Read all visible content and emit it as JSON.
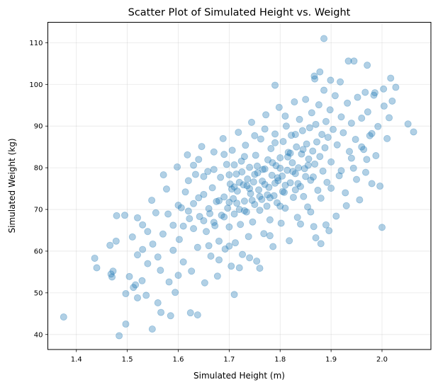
{
  "chart_data": {
    "type": "scatter",
    "title": "Scatter Plot of Simulated Height vs. Weight",
    "xlabel": "Simulated Height (m)",
    "ylabel": "Simulated Weight (kg)",
    "xlim": [
      1.344,
      2.096
    ],
    "ylim": [
      36.4,
      114.9
    ],
    "xticks": [
      1.4,
      1.5,
      1.6,
      1.7,
      1.8,
      1.9,
      2.0
    ],
    "xtick_labels": [
      "1.4",
      "1.5",
      "1.6",
      "1.7",
      "1.8",
      "1.9",
      "2.0"
    ],
    "yticks": [
      40,
      50,
      60,
      70,
      80,
      90,
      100,
      110
    ],
    "ytick_labels": [
      "40",
      "50",
      "60",
      "70",
      "80",
      "90",
      "100",
      "110"
    ],
    "grid": true,
    "marker_color": "#1f77b4",
    "marker_alpha": 0.35,
    "points": [
      [
        1.375,
        44.2
      ],
      [
        1.484,
        39.7
      ],
      [
        1.497,
        42.5
      ],
      [
        1.549,
        41.3
      ],
      [
        1.886,
        111.0
      ],
      [
        2.062,
        88.6
      ],
      [
        2.051,
        90.5
      ],
      [
        2.0,
        65.7
      ],
      [
        1.934,
        105.6
      ],
      [
        1.945,
        105.6
      ],
      [
        1.971,
        104.6
      ],
      [
        1.878,
        103.0
      ],
      [
        2.017,
        101.5
      ],
      [
        2.027,
        99.3
      ],
      [
        1.867,
        102.0
      ],
      [
        1.868,
        101.3
      ],
      [
        1.79,
        99.8
      ],
      [
        1.918,
        100.6
      ],
      [
        1.899,
        101.0
      ],
      [
        1.967,
        98.1
      ],
      [
        1.986,
        98.0
      ],
      [
        2.003,
        98.9
      ],
      [
        1.436,
        58.3
      ],
      [
        1.44,
        56.0
      ],
      [
        1.466,
        61.4
      ],
      [
        1.468,
        54.5
      ],
      [
        1.472,
        55.2
      ],
      [
        1.47,
        53.8
      ],
      [
        1.478,
        62.4
      ],
      [
        1.479,
        68.5
      ],
      [
        1.495,
        68.6
      ],
      [
        1.497,
        49.8
      ],
      [
        1.504,
        53.9
      ],
      [
        1.512,
        51.3
      ],
      [
        1.516,
        51.9
      ],
      [
        1.52,
        48.8
      ],
      [
        1.529,
        52.9
      ],
      [
        1.537,
        49.4
      ],
      [
        1.56,
        47.6
      ],
      [
        1.566,
        45.3
      ],
      [
        1.585,
        44.5
      ],
      [
        1.624,
        45.2
      ],
      [
        1.638,
        44.7
      ],
      [
        1.71,
        49.6
      ],
      [
        1.51,
        63.4
      ],
      [
        1.52,
        68.0
      ],
      [
        1.53,
        60.4
      ],
      [
        1.54,
        64.7
      ],
      [
        1.548,
        72.2
      ],
      [
        1.556,
        69.2
      ],
      [
        1.56,
        58.6
      ],
      [
        1.565,
        55.4
      ],
      [
        1.571,
        78.3
      ],
      [
        1.577,
        74.9
      ],
      [
        1.582,
        52.6
      ],
      [
        1.59,
        66.2
      ],
      [
        1.594,
        50.1
      ],
      [
        1.598,
        80.2
      ],
      [
        1.602,
        62.8
      ],
      [
        1.606,
        70.4
      ],
      [
        1.61,
        57.4
      ],
      [
        1.614,
        74.2
      ],
      [
        1.618,
        83.1
      ],
      [
        1.622,
        67.8
      ],
      [
        1.626,
        55.2
      ],
      [
        1.63,
        71.4
      ],
      [
        1.634,
        78.4
      ],
      [
        1.638,
        60.9
      ],
      [
        1.642,
        68.3
      ],
      [
        1.646,
        85.1
      ],
      [
        1.65,
        73.6
      ],
      [
        1.652,
        52.4
      ],
      [
        1.655,
        64.7
      ],
      [
        1.658,
        79.1
      ],
      [
        1.662,
        69.0
      ],
      [
        1.664,
        58.8
      ],
      [
        1.667,
        75.2
      ],
      [
        1.67,
        83.8
      ],
      [
        1.672,
        66.1
      ],
      [
        1.675,
        71.9
      ],
      [
        1.677,
        54.0
      ],
      [
        1.68,
        62.4
      ],
      [
        1.683,
        77.7
      ],
      [
        1.685,
        68.6
      ],
      [
        1.688,
        87.0
      ],
      [
        1.69,
        73.0
      ],
      [
        1.692,
        60.5
      ],
      [
        1.695,
        80.8
      ],
      [
        1.697,
        70.3
      ],
      [
        1.7,
        65.8
      ],
      [
        1.702,
        76.1
      ],
      [
        1.704,
        56.4
      ],
      [
        1.706,
        84.2
      ],
      [
        1.708,
        72.6
      ],
      [
        1.71,
        68.9
      ],
      [
        1.712,
        62.0
      ],
      [
        1.714,
        78.5
      ],
      [
        1.716,
        74.4
      ],
      [
        1.718,
        88.5
      ],
      [
        1.72,
        70.0
      ],
      [
        1.722,
        66.4
      ],
      [
        1.724,
        81.6
      ],
      [
        1.726,
        59.2
      ],
      [
        1.728,
        75.9
      ],
      [
        1.73,
        72.0
      ],
      [
        1.732,
        85.4
      ],
      [
        1.734,
        69.4
      ],
      [
        1.736,
        77.3
      ],
      [
        1.738,
        63.5
      ],
      [
        1.74,
        80.1
      ],
      [
        1.742,
        73.8
      ],
      [
        1.744,
        90.9
      ],
      [
        1.746,
        67.0
      ],
      [
        1.748,
        76.6
      ],
      [
        1.75,
        71.2
      ],
      [
        1.752,
        83.0
      ],
      [
        1.754,
        57.6
      ],
      [
        1.756,
        78.8
      ],
      [
        1.758,
        74.7
      ],
      [
        1.76,
        69.8
      ],
      [
        1.762,
        86.9
      ],
      [
        1.764,
        72.4
      ],
      [
        1.766,
        79.6
      ],
      [
        1.768,
        64.2
      ],
      [
        1.77,
        76.0
      ],
      [
        1.772,
        92.7
      ],
      [
        1.774,
        70.8
      ],
      [
        1.776,
        81.9
      ],
      [
        1.778,
        75.3
      ],
      [
        1.78,
        67.5
      ],
      [
        1.782,
        84.6
      ],
      [
        1.784,
        78.2
      ],
      [
        1.786,
        61.1
      ],
      [
        1.788,
        73.3
      ],
      [
        1.79,
        88.1
      ],
      [
        1.792,
        80.5
      ],
      [
        1.794,
        71.6
      ],
      [
        1.796,
        76.9
      ],
      [
        1.798,
        94.5
      ],
      [
        1.8,
        82.4
      ],
      [
        1.802,
        66.7
      ],
      [
        1.804,
        78.0
      ],
      [
        1.806,
        86.3
      ],
      [
        1.808,
        74.1
      ],
      [
        1.81,
        70.3
      ],
      [
        1.812,
        90.0
      ],
      [
        1.814,
        79.4
      ],
      [
        1.816,
        83.7
      ],
      [
        1.818,
        62.5
      ],
      [
        1.82,
        76.4
      ],
      [
        1.822,
        87.8
      ],
      [
        1.824,
        81.2
      ],
      [
        1.826,
        72.9
      ],
      [
        1.828,
        95.8
      ],
      [
        1.83,
        78.6
      ],
      [
        1.832,
        85.0
      ],
      [
        1.834,
        68.1
      ],
      [
        1.836,
        80.0
      ],
      [
        1.838,
        91.6
      ],
      [
        1.84,
        75.5
      ],
      [
        1.842,
        83.3
      ],
      [
        1.844,
        88.9
      ],
      [
        1.846,
        73.1
      ],
      [
        1.848,
        79.8
      ],
      [
        1.85,
        96.4
      ],
      [
        1.852,
        85.7
      ],
      [
        1.854,
        70.6
      ],
      [
        1.856,
        82.1
      ],
      [
        1.858,
        89.6
      ],
      [
        1.86,
        77.0
      ],
      [
        1.862,
        93.2
      ],
      [
        1.864,
        84.0
      ],
      [
        1.866,
        65.9
      ],
      [
        1.868,
        80.9
      ],
      [
        1.87,
        90.4
      ],
      [
        1.872,
        86.2
      ],
      [
        1.874,
        74.6
      ],
      [
        1.876,
        95.1
      ],
      [
        1.878,
        82.7
      ],
      [
        1.88,
        61.8
      ],
      [
        1.882,
        88.0
      ],
      [
        1.884,
        79.2
      ],
      [
        1.886,
        98.6
      ],
      [
        1.888,
        84.8
      ],
      [
        1.89,
        91.1
      ],
      [
        1.892,
        76.5
      ],
      [
        1.894,
        87.3
      ],
      [
        1.896,
        64.9
      ],
      [
        1.898,
        93.9
      ],
      [
        1.9,
        81.4
      ],
      [
        1.904,
        89.2
      ],
      [
        1.908,
        97.3
      ],
      [
        1.912,
        85.5
      ],
      [
        1.916,
        78.1
      ],
      [
        1.92,
        92.2
      ],
      [
        1.924,
        88.4
      ],
      [
        1.928,
        74.0
      ],
      [
        1.932,
        95.5
      ],
      [
        1.936,
        83.9
      ],
      [
        1.94,
        90.7
      ],
      [
        1.944,
        79.9
      ],
      [
        1.948,
        86.8
      ],
      [
        1.952,
        96.9
      ],
      [
        1.956,
        72.3
      ],
      [
        1.96,
        91.9
      ],
      [
        1.964,
        84.4
      ],
      [
        1.968,
        78.9
      ],
      [
        1.972,
        93.4
      ],
      [
        1.976,
        87.7
      ],
      [
        1.98,
        76.2
      ],
      [
        1.984,
        97.4
      ],
      [
        1.988,
        82.9
      ],
      [
        1.992,
        89.9
      ],
      [
        1.996,
        75.6
      ],
      [
        2.004,
        94.8
      ],
      [
        2.01,
        87.0
      ],
      [
        2.014,
        92.0
      ],
      [
        2.02,
        96.0
      ],
      [
        1.7,
        78.3
      ],
      [
        1.705,
        74.9
      ],
      [
        1.715,
        71.5
      ],
      [
        1.725,
        79.0
      ],
      [
        1.735,
        75.7
      ],
      [
        1.745,
        72.2
      ],
      [
        1.755,
        80.4
      ],
      [
        1.765,
        76.8
      ],
      [
        1.775,
        73.5
      ],
      [
        1.785,
        81.2
      ],
      [
        1.795,
        77.6
      ],
      [
        1.805,
        74.3
      ],
      [
        1.815,
        82.6
      ],
      [
        1.825,
        79.1
      ],
      [
        1.835,
        76.2
      ],
      [
        1.845,
        84.4
      ],
      [
        1.855,
        80.6
      ],
      [
        1.865,
        77.8
      ],
      [
        1.72,
        76.5
      ],
      [
        1.73,
        69.7
      ],
      [
        1.74,
        75.0
      ],
      [
        1.75,
        78.4
      ],
      [
        1.76,
        73.1
      ],
      [
        1.77,
        79.7
      ],
      [
        1.78,
        72.8
      ],
      [
        1.79,
        76.3
      ],
      [
        1.8,
        79.9
      ],
      [
        1.81,
        75.8
      ],
      [
        1.82,
        83.5
      ],
      [
        1.83,
        74.7
      ],
      [
        1.66,
        70.2
      ],
      [
        1.67,
        66.9
      ],
      [
        1.68,
        72.1
      ],
      [
        1.69,
        68.2
      ],
      [
        1.7,
        71.7
      ],
      [
        1.71,
        75.4
      ],
      [
        1.64,
        72.8
      ],
      [
        1.65,
        67.3
      ],
      [
        1.62,
        69.6
      ],
      [
        1.63,
        65.4
      ],
      [
        1.6,
        71.0
      ],
      [
        1.61,
        66.0
      ],
      [
        1.58,
        68.9
      ],
      [
        1.59,
        60.2
      ],
      [
        1.57,
        64.1
      ],
      [
        1.55,
        61.7
      ],
      [
        1.54,
        57.0
      ],
      [
        1.53,
        66.3
      ],
      [
        1.52,
        59.1
      ],
      [
        1.6,
        54.2
      ],
      [
        1.62,
        76.9
      ],
      [
        1.64,
        82.0
      ],
      [
        1.66,
        61.3
      ],
      [
        1.68,
        57.9
      ],
      [
        1.7,
        61.2
      ],
      [
        1.72,
        56.0
      ],
      [
        1.74,
        58.4
      ],
      [
        1.76,
        55.9
      ],
      [
        1.78,
        63.7
      ],
      [
        1.8,
        70.8
      ],
      [
        1.84,
        66.5
      ],
      [
        1.86,
        69.4
      ],
      [
        1.88,
        72.7
      ],
      [
        1.9,
        75.1
      ],
      [
        1.92,
        79.3
      ],
      [
        1.94,
        82.3
      ],
      [
        1.96,
        85.0
      ],
      [
        1.98,
        88.2
      ],
      [
        1.95,
        77.2
      ],
      [
        1.97,
        82.0
      ],
      [
        1.93,
        70.9
      ],
      [
        1.91,
        68.4
      ],
      [
        1.89,
        66.3
      ],
      [
        1.87,
        63.2
      ],
      [
        1.85,
        77.9
      ],
      [
        1.83,
        88.0
      ],
      [
        1.81,
        92.4
      ],
      [
        1.79,
        86.0
      ],
      [
        1.77,
        89.3
      ],
      [
        1.75,
        87.7
      ],
      [
        1.73,
        82.7
      ],
      [
        1.71,
        80.7
      ],
      [
        1.69,
        83.2
      ],
      [
        1.67,
        79.6
      ],
      [
        1.65,
        77.9
      ],
      [
        1.63,
        80.6
      ]
    ]
  }
}
